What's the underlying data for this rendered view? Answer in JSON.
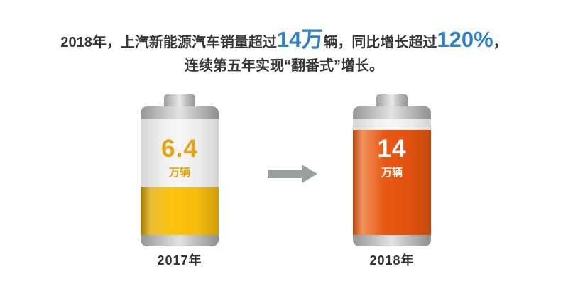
{
  "title": {
    "line1": [
      {
        "text": "2018年，上汽新能源汽车销量超过"
      },
      {
        "text": "14万"
      },
      {
        "text": "辆，同比增长超过"
      },
      {
        "text": "120%"
      },
      {
        "text": "，"
      }
    ],
    "line2": "连续第五年实现“翻番式”增长。",
    "text_color": "#363636",
    "accent_color": "#2E81C6"
  },
  "chart_data": {
    "type": "bar",
    "style": "battery-pictogram",
    "categories": [
      "2017年",
      "2018年"
    ],
    "series": [
      {
        "name": "上汽新能源汽车销量",
        "values": [
          6.4,
          14
        ]
      }
    ],
    "unit": "万辆",
    "title": "2018年，上汽新能源汽车销量超过14万辆，同比增长超过120%，连续第五年实现“翻番式”增长。",
    "fill_percent": [
      41,
      91
    ],
    "bar_colors": [
      "#FCC30D",
      "#E75913"
    ],
    "legend_position": "none",
    "grid": false
  },
  "batteries": [
    {
      "value": "6.4",
      "unit": "万辆",
      "year": "2017年",
      "fill_percent": 41,
      "fill_color": "#FCC30D",
      "value_color": "#E0A414"
    },
    {
      "value": "14",
      "unit": "万辆",
      "year": "2018年",
      "fill_percent": 91,
      "fill_color": "#E75913",
      "value_color": "#FFFFFF"
    }
  ],
  "arrow": {
    "direction": "right",
    "color": "#9D9E9E"
  }
}
